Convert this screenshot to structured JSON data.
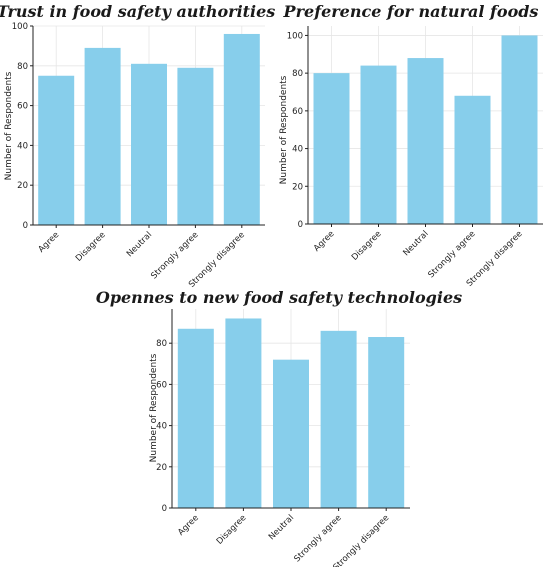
{
  "colors": {
    "bar": "#87CEEB"
  },
  "chart_data": [
    {
      "type": "bar",
      "title": "Trust in food safety authorities",
      "ylabel": "Number of Respondents",
      "xlabel": "",
      "categories": [
        "Agree",
        "Disagree",
        "Neutral",
        "Strongly agree",
        "Strongly disagree"
      ],
      "values": [
        75,
        89,
        81,
        79,
        96
      ],
      "ylim": [
        0,
        100
      ],
      "yticks": [
        0,
        20,
        40,
        60,
        80,
        100
      ],
      "grid": true
    },
    {
      "type": "bar",
      "title": "Preference for natural foods",
      "ylabel": "Number of Respondents",
      "xlabel": "",
      "categories": [
        "Agree",
        "Disagree",
        "Neutral",
        "Strongly agree",
        "Strongly disagree"
      ],
      "values": [
        80,
        84,
        88,
        68,
        100
      ],
      "ylim": [
        0,
        105
      ],
      "yticks": [
        0,
        20,
        40,
        60,
        80,
        100
      ],
      "grid": true
    },
    {
      "type": "bar",
      "title": "Opennes to new food safety technologies",
      "ylabel": "Number of Respondents",
      "xlabel": "",
      "categories": [
        "Agree",
        "Disagree",
        "Neutral",
        "Strongly agree",
        "Strongly disagree"
      ],
      "values": [
        87,
        92,
        72,
        86,
        83
      ],
      "ylim": [
        0,
        96.6
      ],
      "yticks": [
        0,
        20,
        40,
        60,
        80
      ],
      "grid": true
    }
  ]
}
